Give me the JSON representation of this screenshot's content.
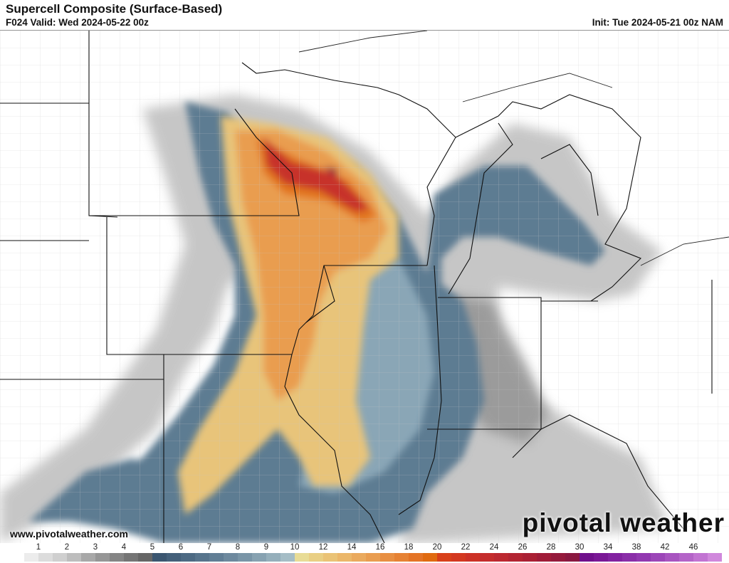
{
  "header": {
    "title": "Supercell Composite (Surface-Based)",
    "valid": "F024 Valid: Wed 2024-05-22 00z",
    "init": "Init: Tue 2024-05-21 00z NAM"
  },
  "footer": {
    "website": "www.pivotalweather.com",
    "logo": "pivotal weather"
  },
  "colorbar": {
    "labels": [
      "1",
      "2",
      "3",
      "4",
      "5",
      "6",
      "7",
      "8",
      "9",
      "10",
      "12",
      "14",
      "16",
      "18",
      "20",
      "22",
      "24",
      "26",
      "28",
      "30",
      "34",
      "38",
      "42",
      "46"
    ],
    "label_segment_index": [
      2,
      4,
      6,
      8,
      10,
      12,
      14,
      16,
      18,
      20,
      22,
      24,
      26,
      28,
      30,
      32,
      34,
      36,
      38,
      40,
      42,
      44,
      46,
      48
    ],
    "colors": [
      "#ffffff",
      "#ececec",
      "#dcdcdc",
      "#cfcfcf",
      "#bdbdbd",
      "#a8a8a8",
      "#969696",
      "#858585",
      "#757575",
      "#666666",
      "#3b5670",
      "#44607a",
      "#4d6a83",
      "#57748c",
      "#617e95",
      "#6d899e",
      "#7995a7",
      "#87a2b1",
      "#95afbb",
      "#a5bdc6",
      "#e8dc96",
      "#e9cf84",
      "#eac376",
      "#ebb76a",
      "#eaaa5e",
      "#e99d50",
      "#e88f42",
      "#e68234",
      "#e47426",
      "#e06a10",
      "#d8401a",
      "#d33820",
      "#cc3126",
      "#c42c2c",
      "#bc2830",
      "#b32432",
      "#aa2034",
      "#a01c38",
      "#951a3c",
      "#8a1840",
      "#70108c",
      "#7a1896",
      "#8222a0",
      "#8a2ea8",
      "#9238b0",
      "#9c46b8",
      "#a854c0",
      "#b464c8",
      "#c274d2",
      "#d088dc"
    ]
  }
}
